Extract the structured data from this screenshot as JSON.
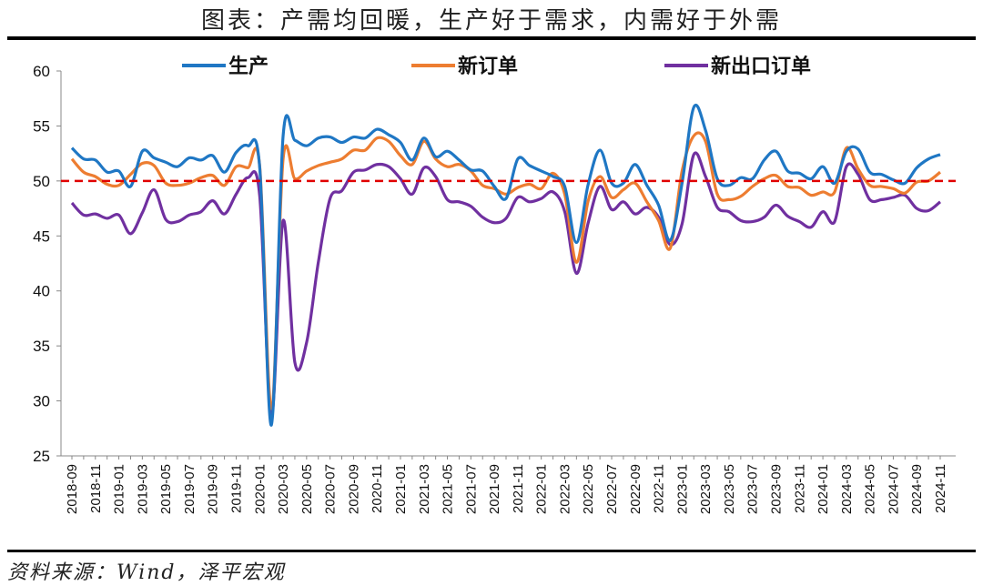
{
  "title": "图表：产需均回暖，生产好于需求，内需好于外需",
  "source": "资料来源：Wind，泽平宏观",
  "colors": {
    "production": "#1f77c4",
    "new_orders": "#ed7d31",
    "new_export_orders": "#7030a0",
    "reference": "#e00000"
  },
  "chart_data": {
    "type": "line",
    "ylim": [
      25,
      60
    ],
    "yticks": [
      25,
      30,
      35,
      40,
      45,
      50,
      55,
      60
    ],
    "reference_line": 50,
    "legend_position": "top",
    "x": [
      "2018-09",
      "2018-10",
      "2018-11",
      "2018-12",
      "2019-01",
      "2019-02",
      "2019-03",
      "2019-04",
      "2019-05",
      "2019-06",
      "2019-07",
      "2019-08",
      "2019-09",
      "2019-10",
      "2019-11",
      "2019-12",
      "2020-01",
      "2020-02",
      "2020-03",
      "2020-04",
      "2020-05",
      "2020-06",
      "2020-07",
      "2020-08",
      "2020-09",
      "2020-10",
      "2020-11",
      "2020-12",
      "2021-01",
      "2021-02",
      "2021-03",
      "2021-04",
      "2021-05",
      "2021-06",
      "2021-07",
      "2021-08",
      "2021-09",
      "2021-10",
      "2021-11",
      "2021-12",
      "2022-01",
      "2022-02",
      "2022-03",
      "2022-04",
      "2022-05",
      "2022-06",
      "2022-07",
      "2022-08",
      "2022-09",
      "2022-10",
      "2022-11",
      "2022-12",
      "2023-01",
      "2023-02",
      "2023-03",
      "2023-04",
      "2023-05",
      "2023-06",
      "2023-07",
      "2023-08",
      "2023-09",
      "2023-10",
      "2023-11",
      "2023-12",
      "2024-01",
      "2024-02",
      "2024-03",
      "2024-04",
      "2024-05",
      "2024-06",
      "2024-07",
      "2024-08",
      "2024-09",
      "2024-10",
      "2024-11"
    ],
    "xtick_labels": [
      "2018-09",
      "2018-11",
      "2019-01",
      "2019-03",
      "2019-05",
      "2019-07",
      "2019-09",
      "2019-11",
      "2020-01",
      "2020-03",
      "2020-05",
      "2020-07",
      "2020-09",
      "2020-11",
      "2021-01",
      "2021-03",
      "2021-05",
      "2021-07",
      "2021-09",
      "2021-11",
      "2022-01",
      "2022-03",
      "2022-05",
      "2022-07",
      "2022-09",
      "2022-11",
      "2023-01",
      "2023-03",
      "2023-05",
      "2023-07",
      "2023-09",
      "2023-11",
      "2024-01",
      "2024-03",
      "2024-05",
      "2024-07",
      "2024-09",
      "2024-11"
    ],
    "series": [
      {
        "key": "production",
        "name": "生产",
        "values": [
          53.0,
          52.0,
          51.9,
          50.8,
          50.9,
          49.5,
          52.7,
          52.1,
          51.7,
          51.3,
          52.1,
          51.9,
          52.3,
          50.8,
          52.6,
          53.2,
          51.3,
          27.8,
          54.1,
          53.7,
          53.2,
          53.9,
          54.0,
          53.5,
          54.0,
          53.9,
          54.7,
          54.2,
          53.5,
          51.9,
          53.9,
          52.2,
          52.7,
          51.9,
          51.0,
          50.9,
          49.5,
          48.4,
          52.0,
          51.4,
          50.9,
          50.4,
          49.5,
          44.4,
          49.7,
          52.8,
          49.8,
          49.8,
          51.5,
          49.6,
          47.8,
          44.6,
          49.8,
          56.7,
          54.6,
          50.2,
          49.6,
          50.3,
          50.2,
          51.9,
          52.7,
          50.9,
          50.7,
          50.2,
          51.3,
          49.8,
          52.7,
          52.9,
          50.8,
          50.6,
          50.1,
          49.8,
          51.2,
          52.0,
          52.4
        ]
      },
      {
        "key": "new_orders",
        "name": "新订单",
        "values": [
          52.0,
          50.8,
          50.4,
          49.7,
          49.6,
          50.6,
          51.6,
          51.4,
          49.8,
          49.6,
          49.8,
          50.3,
          50.5,
          49.6,
          51.3,
          51.2,
          51.4,
          29.3,
          52.0,
          50.2,
          50.9,
          51.4,
          51.7,
          52.0,
          52.8,
          52.8,
          53.9,
          53.6,
          52.3,
          51.5,
          53.6,
          52.0,
          51.3,
          51.5,
          50.9,
          49.6,
          49.3,
          48.8,
          49.4,
          49.7,
          49.3,
          50.7,
          48.8,
          42.6,
          48.2,
          50.4,
          48.5,
          49.2,
          49.8,
          48.1,
          46.4,
          43.9,
          50.9,
          54.1,
          53.6,
          48.8,
          48.3,
          48.6,
          49.5,
          50.2,
          50.5,
          49.5,
          49.4,
          48.7,
          49.0,
          49.0,
          53.0,
          51.1,
          49.6,
          49.5,
          49.3,
          48.9,
          49.9,
          50.0,
          50.8
        ]
      },
      {
        "key": "new_export_orders",
        "name": "新出口订单",
        "values": [
          48.0,
          46.9,
          47.0,
          46.6,
          46.9,
          45.2,
          47.1,
          49.2,
          46.5,
          46.3,
          46.9,
          47.2,
          48.2,
          47.0,
          48.8,
          50.3,
          48.7,
          28.7,
          46.4,
          33.5,
          35.3,
          42.6,
          48.4,
          49.1,
          50.8,
          51.0,
          51.5,
          51.3,
          50.2,
          48.8,
          51.2,
          50.4,
          48.3,
          48.1,
          47.7,
          46.7,
          46.2,
          46.6,
          48.5,
          48.1,
          48.4,
          49.0,
          47.2,
          41.6,
          46.2,
          49.5,
          47.4,
          48.1,
          47.0,
          47.6,
          46.7,
          44.2,
          46.1,
          52.4,
          50.4,
          47.6,
          47.2,
          46.4,
          46.3,
          46.7,
          47.8,
          46.8,
          46.3,
          45.8,
          47.2,
          46.3,
          51.3,
          50.6,
          48.3,
          48.3,
          48.5,
          48.7,
          47.5,
          47.3,
          48.1
        ]
      }
    ]
  }
}
